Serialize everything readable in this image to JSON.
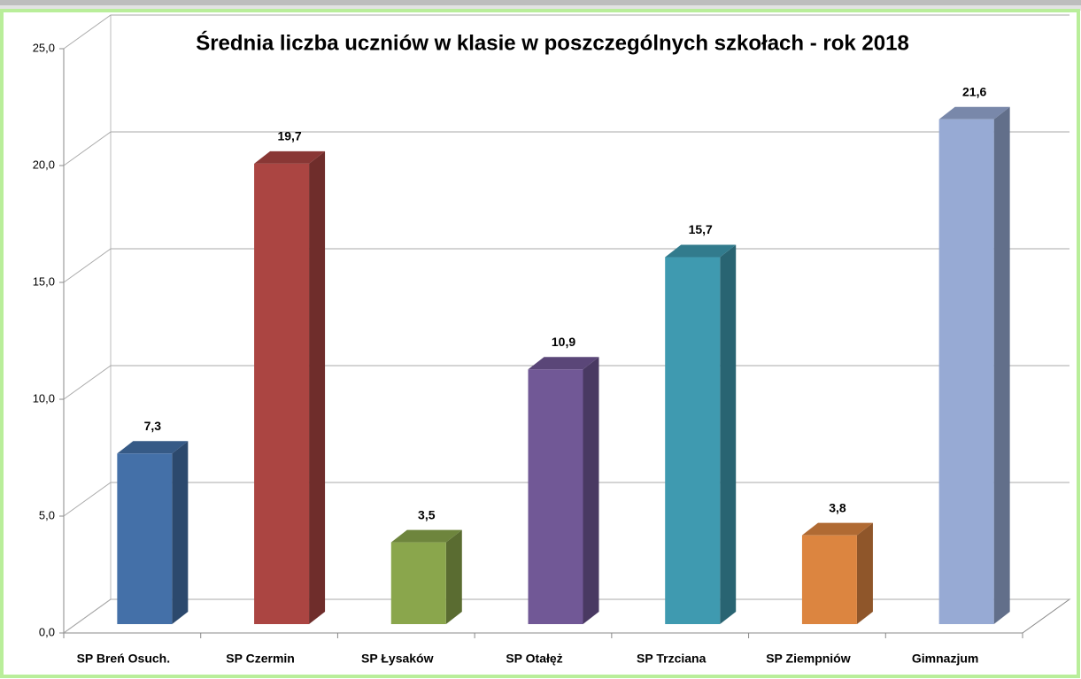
{
  "chart_data": {
    "type": "bar3d",
    "title": "Średnia liczba uczniów w klasie w poszczególnych szkołach - rok 2018",
    "categories": [
      "SP Breń Osuch.",
      "SP Czermin",
      "SP Łysaków",
      "SP Otałęż",
      "SP Trzciana",
      "SP Ziempniów",
      "Gimnazjum"
    ],
    "values": [
      7.3,
      19.7,
      3.5,
      10.9,
      15.7,
      3.8,
      21.6
    ],
    "value_labels": [
      "7,3",
      "19,7",
      "3,5",
      "10,9",
      "15,7",
      "3,8",
      "21,6"
    ],
    "colors": [
      "#4470a8",
      "#ab4542",
      "#8aa64c",
      "#715896",
      "#3f9ab0",
      "#dc8540",
      "#97aad4"
    ],
    "ylim": [
      0,
      25
    ],
    "yticks": [
      {
        "value": 0,
        "label": "0,0"
      },
      {
        "value": 5,
        "label": "5,0"
      },
      {
        "value": 10,
        "label": "10,0"
      },
      {
        "value": 15,
        "label": "15,0"
      },
      {
        "value": 20,
        "label": "20,0"
      },
      {
        "value": 25,
        "label": "25,0"
      }
    ],
    "grid": true
  }
}
